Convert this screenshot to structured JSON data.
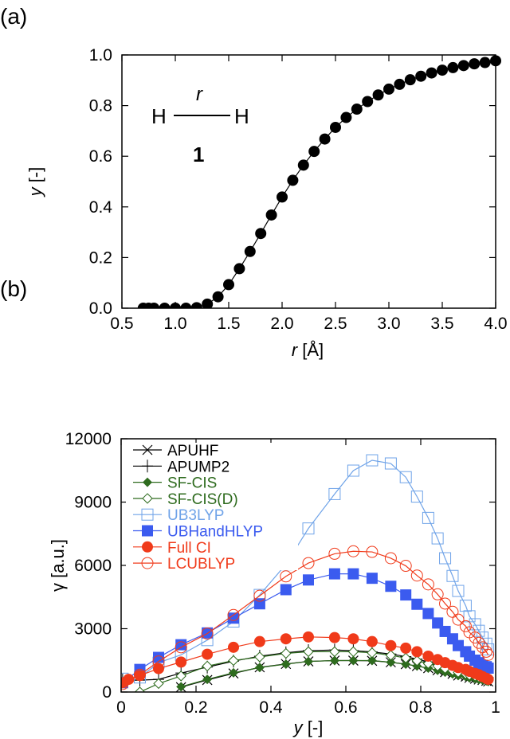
{
  "chart_data": [
    {
      "panel_label": "(a)",
      "type": "line",
      "xlabel": "r [Å]",
      "ylabel": "y [-]",
      "xlim": [
        0.5,
        4.0
      ],
      "ylim": [
        0,
        1.0
      ],
      "xticks": [
        "0.5",
        "1.0",
        "1.5",
        "2.0",
        "2.5",
        "3.0",
        "3.5",
        "4.0"
      ],
      "yticks": [
        "0.0",
        "0.2",
        "0.4",
        "0.6",
        "0.8",
        "1.0"
      ],
      "inset": {
        "atom_left": "H",
        "atom_right": "H",
        "bond_label": "r",
        "compound_number": "1"
      },
      "grid": false,
      "series": [
        {
          "marker": "filled-circle",
          "color": "#000000",
          "x": [
            0.7,
            0.75,
            0.8,
            0.9,
            1.0,
            1.1,
            1.2,
            1.3,
            1.4,
            1.5,
            1.6,
            1.7,
            1.8,
            1.9,
            2.0,
            2.1,
            2.2,
            2.3,
            2.4,
            2.5,
            2.6,
            2.7,
            2.8,
            2.9,
            3.0,
            3.1,
            3.2,
            3.3,
            3.4,
            3.5,
            3.6,
            3.7,
            3.8,
            3.9,
            4.0
          ],
          "y": [
            0,
            0,
            0,
            0,
            0,
            0,
            0.002,
            0.016,
            0.045,
            0.093,
            0.156,
            0.224,
            0.295,
            0.368,
            0.439,
            0.505,
            0.565,
            0.619,
            0.668,
            0.714,
            0.753,
            0.786,
            0.816,
            0.842,
            0.865,
            0.884,
            0.902,
            0.916,
            0.929,
            0.94,
            0.95,
            0.958,
            0.965,
            0.97,
            0.977
          ]
        }
      ]
    },
    {
      "panel_label": "(b)",
      "type": "line",
      "xlabel": "y [-]",
      "ylabel": "γ [a.u.]",
      "xlim": [
        0,
        1
      ],
      "ylim": [
        0,
        12000
      ],
      "xticks": [
        "0",
        "0.2",
        "0.4",
        "0.6",
        "0.8",
        "1"
      ],
      "yticks": [
        "0",
        "3000",
        "6000",
        "9000",
        "12000"
      ],
      "grid": false,
      "legend": "top-left",
      "series": [
        {
          "name": "APUHF",
          "marker": "x",
          "color": "#000000",
          "x": [
            0.16,
            0.23,
            0.3,
            0.37,
            0.44,
            0.5,
            0.57,
            0.62,
            0.67,
            0.72,
            0.76,
            0.79,
            0.82,
            0.845,
            0.865,
            0.885,
            0.9,
            0.92,
            0.93,
            0.945,
            0.955,
            0.965,
            0.975,
            0.98
          ],
          "y": [
            230,
            570,
            880,
            1170,
            1330,
            1450,
            1490,
            1490,
            1480,
            1410,
            1320,
            1230,
            1130,
            1030,
            940,
            860,
            780,
            730,
            670,
            630,
            590,
            570,
            530,
            500
          ]
        },
        {
          "name": "APUMP2",
          "marker": "plus",
          "color": "#000000",
          "x": [
            0.004,
            0.05,
            0.1,
            0.16,
            0.23,
            0.3,
            0.37,
            0.44,
            0.5,
            0.57,
            0.62,
            0.67,
            0.72,
            0.76,
            0.79,
            0.82,
            0.845,
            0.865,
            0.885,
            0.9,
            0.92,
            0.93,
            0.945,
            0.955,
            0.965,
            0.975,
            0.98
          ],
          "y": [
            570,
            560,
            600,
            900,
            1180,
            1460,
            1700,
            1860,
            1960,
            1990,
            1960,
            1900,
            1800,
            1680,
            1560,
            1430,
            1310,
            1200,
            1100,
            1010,
            940,
            870,
            820,
            770,
            730,
            700,
            680
          ]
        },
        {
          "name": "SF-CIS",
          "marker": "filled-diamond",
          "color": "#2e6b1e",
          "x": [
            0.16,
            0.23,
            0.3,
            0.37,
            0.44,
            0.5,
            0.57,
            0.62,
            0.67,
            0.72,
            0.76,
            0.79,
            0.82,
            0.845,
            0.865,
            0.885,
            0.9,
            0.92,
            0.93,
            0.945,
            0.955,
            0.965,
            0.975,
            0.98
          ],
          "y": [
            250,
            600,
            910,
            1160,
            1320,
            1450,
            1490,
            1490,
            1490,
            1410,
            1320,
            1230,
            1130,
            1030,
            940,
            860,
            780,
            730,
            670,
            630,
            590,
            570,
            530,
            500
          ]
        },
        {
          "name": "SF-CIS(D)",
          "marker": "open-diamond",
          "color": "#2e6b1e",
          "x": [
            0.05,
            0.1,
            0.16,
            0.23,
            0.3,
            0.37,
            0.44,
            0.5,
            0.57,
            0.62,
            0.67,
            0.72,
            0.76,
            0.79,
            0.82,
            0.845,
            0.865,
            0.885,
            0.9,
            0.92,
            0.93,
            0.945,
            0.955,
            0.965,
            0.975,
            0.98
          ],
          "y": [
            0,
            400,
            760,
            1230,
            1490,
            1660,
            1830,
            1910,
            1910,
            1910,
            1860,
            1740,
            1610,
            1480,
            1350,
            1230,
            1120,
            1020,
            930,
            860,
            800,
            750,
            710,
            670,
            640,
            610
          ]
        },
        {
          "name": "UB3LYP",
          "marker": "open-square",
          "color": "#6fa3e8",
          "x": [
            0.004,
            0.05,
            0.1,
            0.16,
            0.23,
            0.3,
            0.37,
            0.44,
            0.5,
            0.57,
            0.62,
            0.67,
            0.72,
            0.76,
            0.79,
            0.82,
            0.845,
            0.865,
            0.885,
            0.9,
            0.92,
            0.93,
            0.945,
            0.955,
            0.965,
            0.975,
            0.98
          ],
          "y": [
            630,
            690,
            1390,
            1760,
            2460,
            3340,
            4600,
            6050,
            7750,
            9380,
            10490,
            10980,
            10830,
            10180,
            9260,
            8250,
            7280,
            6340,
            5500,
            4790,
            4090,
            3590,
            3210,
            2900,
            2580,
            2290,
            2020
          ]
        },
        {
          "name": "UBHandHLYP",
          "marker": "filled-square",
          "color": "#3b5bef",
          "x": [
            0.004,
            0.05,
            0.1,
            0.16,
            0.23,
            0.3,
            0.37,
            0.44,
            0.5,
            0.57,
            0.62,
            0.67,
            0.72,
            0.76,
            0.79,
            0.82,
            0.845,
            0.865,
            0.885,
            0.9,
            0.92,
            0.93,
            0.945,
            0.955,
            0.965,
            0.975,
            0.98
          ],
          "y": [
            440,
            1070,
            1640,
            2240,
            2800,
            3500,
            4180,
            4850,
            5310,
            5600,
            5600,
            5390,
            5010,
            4600,
            4160,
            3720,
            3270,
            2870,
            2520,
            2200,
            1910,
            1700,
            1510,
            1390,
            1260,
            1200,
            1130
          ]
        },
        {
          "name": "Full CI",
          "marker": "filled-circle",
          "color": "#f03a1a",
          "x": [
            0.004,
            0.02,
            0.05,
            0.1,
            0.16,
            0.23,
            0.3,
            0.37,
            0.44,
            0.5,
            0.57,
            0.62,
            0.67,
            0.72,
            0.76,
            0.79,
            0.82,
            0.845,
            0.865,
            0.885,
            0.9,
            0.92,
            0.93,
            0.945,
            0.955,
            0.965,
            0.975,
            0.98
          ],
          "y": [
            440,
            600,
            780,
            1110,
            1420,
            1790,
            2120,
            2390,
            2520,
            2610,
            2580,
            2520,
            2390,
            2200,
            2080,
            1910,
            1700,
            1540,
            1390,
            1260,
            1160,
            1070,
            980,
            880,
            820,
            730,
            650,
            600
          ]
        },
        {
          "name": "LCUBLYP",
          "marker": "open-circle",
          "color": "#f03a1a",
          "x": [
            0.004,
            0.05,
            0.1,
            0.16,
            0.23,
            0.3,
            0.37,
            0.44,
            0.5,
            0.57,
            0.62,
            0.67,
            0.72,
            0.76,
            0.79,
            0.82,
            0.845,
            0.865,
            0.885,
            0.9,
            0.92,
            0.93,
            0.945,
            0.955,
            0.965,
            0.975,
            0.98
          ],
          "y": [
            380,
            820,
            1450,
            2120,
            2770,
            3650,
            4560,
            5480,
            6110,
            6550,
            6670,
            6640,
            6340,
            5980,
            5520,
            5100,
            4630,
            4190,
            3800,
            3430,
            3120,
            2830,
            2580,
            2330,
            2120,
            1910,
            1760
          ]
        }
      ]
    }
  ]
}
